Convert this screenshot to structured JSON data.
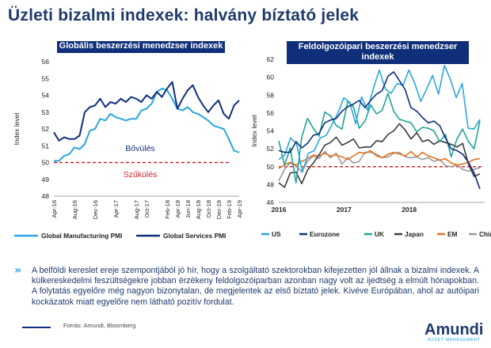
{
  "page": {
    "title": "Üzleti bizalmi indexek: halvány bíztató jelek",
    "body": "A belföldi kereslet ereje szempontjából jó hír, hogy a szolgáltató szektorokban kifejezetten jól állnak a bizalmi indexek. A külkereskedelmi feszültségekre jobban érzékeny feldolgozóiparban azonban nagy volt az ijedtség a elmúlt hónapokban. A folytatás egyelőre még nagyon bizonytalan, de megjelentek az első bíztató jelek. Kivéve Európában, ahol az autóipari kockázatok miatt egyelőre nem látható pozitív fordulat.",
    "source": "Forrás: Amundi, Bloomberg",
    "logo_word": "Amundi",
    "logo_sub": "ASSET MANAGEMENT",
    "bullet_glyph": "»"
  },
  "colors": {
    "navy": "#0f2f7a",
    "light_blue": "#2aa7e0",
    "threshold": "#d2232a",
    "text_navy": "#1f3a6b"
  },
  "chart_data": [
    {
      "type": "line",
      "title": "Globális beszerzési menedzser indexek",
      "ylabel": "Index level",
      "ylim": [
        48,
        56
      ],
      "yticks": [
        48,
        49,
        50,
        51,
        52,
        53,
        54,
        55,
        56
      ],
      "grid": false,
      "legend_position": "bottom",
      "categories": [
        "Apr-16",
        "May-16",
        "Jun-16",
        "Jul-16",
        "Aug-16",
        "Sep-16",
        "Oct-16",
        "Nov-16",
        "Dec-16",
        "Jan-17",
        "Feb-17",
        "Mar-17",
        "Apr-17",
        "May-17",
        "Jun-17",
        "Jul-17",
        "Aug-17",
        "Sep-17",
        "Oct-17",
        "Nov-17",
        "Dec-17",
        "Jan-18",
        "Feb-18",
        "Mar-18",
        "Apr-18",
        "May-18",
        "Jun-18",
        "Jul-18",
        "Aug-18",
        "Sep-18",
        "Oct-18",
        "Nov-18",
        "Dec-18",
        "Jan-19",
        "Feb-19",
        "Mar-19",
        "Apr-19"
      ],
      "xtick_labels": [
        "Apr-16",
        "Aug-16",
        "Dec-16",
        "Apr-17",
        "Aug-17",
        "Oct-17",
        "Feb-18",
        "Apr-18",
        "Jun-18",
        "Aug-18",
        "Oct-18",
        "Dec-18",
        "Feb-19",
        "Apr-19"
      ],
      "series": [
        {
          "name": "Global Manufacturing PMI",
          "color": "#2aa7e0",
          "values": [
            50.1,
            50.1,
            50.4,
            50.5,
            50.9,
            50.8,
            51.1,
            51.9,
            52.0,
            52.6,
            52.5,
            52.9,
            52.7,
            52.6,
            52.5,
            52.6,
            52.6,
            53.1,
            53.2,
            53.5,
            54.2,
            54.4,
            54.3,
            53.8,
            53.2,
            53.1,
            53.3,
            53.0,
            52.9,
            52.7,
            52.5,
            52.2,
            52.1,
            52.0,
            51.4,
            50.7,
            50.6
          ]
        },
        {
          "name": "Global Services PMI",
          "color": "#0f2f7a",
          "values": [
            51.8,
            51.3,
            51.5,
            51.4,
            51.4,
            51.6,
            53.0,
            53.3,
            53.4,
            53.8,
            53.3,
            53.6,
            53.5,
            53.8,
            53.6,
            53.9,
            53.8,
            53.6,
            54.0,
            53.8,
            54.2,
            53.9,
            54.4,
            54.8,
            53.2,
            53.8,
            54.3,
            54.6,
            53.9,
            53.4,
            53.0,
            53.4,
            53.7,
            52.9,
            52.6,
            53.4,
            53.7
          ]
        }
      ],
      "reference_line": 50,
      "annotations": [
        "Bővülés",
        "Szűkülés"
      ]
    },
    {
      "type": "line",
      "title": "Feldolgozóipari beszerzési menedzser indexek",
      "ylabel": "Index level",
      "ylim": [
        46,
        62
      ],
      "yticks": [
        46,
        48,
        50,
        52,
        54,
        56,
        58,
        60,
        62
      ],
      "grid": false,
      "legend_position": "bottom",
      "xtick_labels": [
        "2016",
        "2017",
        "2018"
      ],
      "x_start": 2016,
      "x_end": 2019,
      "reference_line": 50,
      "series": [
        {
          "name": "US",
          "color": "#2aa7e0",
          "values": [
            50.8,
            51.3,
            53.2,
            52.6,
            49.4,
            51.5,
            51.8,
            53.2,
            53.5,
            54.7,
            56.0,
            57.7,
            57.2,
            54.8,
            57.8,
            56.3,
            58.8,
            60.8,
            58.7,
            58.2,
            59.3,
            59.1,
            60.8,
            59.3,
            57.3,
            58.7,
            60.2,
            58.1,
            61.3,
            59.8,
            57.7,
            59.3,
            54.3,
            54.2,
            55.3
          ]
        },
        {
          "name": "Eurozone",
          "color": "#0f2f7a",
          "values": [
            51.8,
            51.6,
            51.6,
            52.8,
            52.1,
            52.6,
            53.5,
            53.7,
            54.9,
            55.2,
            55.4,
            56.2,
            56.7,
            57.0,
            57.4,
            56.6,
            57.4,
            58.1,
            58.5,
            60.1,
            60.6,
            59.6,
            58.6,
            56.6,
            56.2,
            55.5,
            54.9,
            55.1,
            54.6,
            53.2,
            52.0,
            51.8,
            51.4,
            50.5,
            49.3,
            47.5
          ]
        },
        {
          "name": "UK",
          "color": "#1ea39a",
          "values": [
            52.9,
            50.2,
            52.1,
            48.2,
            53.3,
            55.4,
            54.3,
            53.4,
            56.1,
            55.7,
            54.6,
            54.2,
            57.3,
            56.7,
            54.3,
            55.1,
            56.9,
            55.9,
            56.3,
            58.2,
            56.2,
            55.3,
            55.1,
            54.9,
            53.9,
            54.4,
            54.3,
            54.0,
            52.8,
            53.6,
            51.1,
            53.1,
            54.2,
            52.8,
            52.0,
            55.1
          ]
        },
        {
          "name": "Japan",
          "color": "#3a3a3a",
          "values": [
            48.2,
            47.7,
            49.3,
            49.4,
            48.1,
            49.6,
            50.4,
            51.3,
            52.4,
            52.7,
            53.3,
            52.4,
            52.7,
            53.1,
            52.1,
            52.2,
            52.2,
            52.9,
            52.8,
            53.6,
            54.0,
            54.8,
            54.1,
            53.1,
            53.8,
            52.8,
            53.0,
            52.5,
            52.9,
            52.7,
            52.5,
            52.2,
            52.6,
            50.3,
            48.9,
            49.2
          ]
        },
        {
          "name": "EM",
          "color": "#e8731e",
          "values": [
            49.8,
            50.2,
            50.5,
            50.2,
            50.6,
            50.9,
            51.3,
            51.2,
            51.5,
            51.2,
            51.3,
            51.1,
            50.8,
            51.2,
            51.6,
            51.5,
            51.8,
            51.2,
            51.0,
            51.4,
            51.6,
            51.4,
            51.2,
            51.7,
            51.1,
            51.6,
            51.2,
            51.0,
            50.7,
            50.9,
            50.4,
            50.2,
            50.3,
            50.5,
            50.8,
            50.9
          ]
        },
        {
          "name": "China",
          "color": "#9a9a9a",
          "values": [
            48.4,
            49.7,
            50.4,
            50.1,
            49.4,
            50.6,
            51.2,
            50.9,
            51.7,
            51.0,
            51.5,
            50.3,
            51.0,
            50.4,
            50.6,
            51.6,
            51.6,
            51.4,
            51.0,
            51.1,
            51.5,
            51.6,
            51.1,
            51.0,
            51.1,
            50.8,
            51.0,
            50.6,
            50.8,
            50.1,
            50.0,
            50.2,
            49.7,
            49.5,
            49.7,
            49.9
          ]
        }
      ]
    }
  ]
}
